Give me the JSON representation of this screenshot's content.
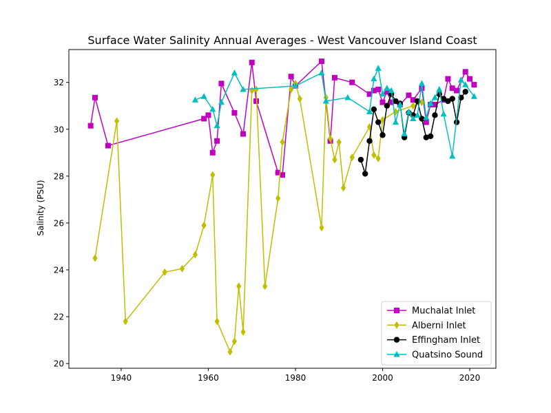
{
  "chart_data": {
    "type": "line",
    "title": "Surface Water Salinity Annual Averages - West Vancouver Island Coast",
    "xlabel": "",
    "ylabel": "Salinity (PSU)",
    "xlim": [
      1928,
      2026
    ],
    "ylim": [
      19.8,
      33.4
    ],
    "xticks": [
      1940,
      1960,
      1980,
      2000,
      2020
    ],
    "yticks": [
      20,
      22,
      24,
      26,
      28,
      30,
      32
    ],
    "grid": false,
    "legend_position": "lower right",
    "series": [
      {
        "name": "Muchalat Inlet",
        "color": "#bf00bf",
        "marker": "square",
        "points": [
          [
            1933,
            30.15
          ],
          [
            1934,
            31.35
          ],
          [
            1937,
            29.3
          ],
          [
            1959,
            30.45
          ],
          [
            1960,
            30.6
          ],
          [
            1961,
            29.0
          ],
          [
            1962,
            29.5
          ],
          [
            1963,
            31.95
          ],
          [
            1966,
            30.7
          ],
          [
            1968,
            29.8
          ],
          [
            1970,
            32.85
          ],
          [
            1971,
            31.2
          ],
          [
            1976,
            28.15
          ],
          [
            1977,
            28.05
          ],
          [
            1979,
            32.25
          ],
          [
            1980,
            31.85
          ],
          [
            1986,
            32.9
          ],
          [
            1988,
            29.5
          ],
          [
            1989,
            32.2
          ],
          [
            1993,
            32.0
          ],
          [
            1997,
            31.5
          ],
          [
            1998,
            31.65
          ],
          [
            1999,
            31.7
          ],
          [
            2000,
            31.15
          ],
          [
            2001,
            31.6
          ],
          [
            2002,
            31.15
          ],
          [
            2004,
            31.05
          ],
          [
            2006,
            31.45
          ],
          [
            2007,
            31.25
          ],
          [
            2009,
            31.75
          ],
          [
            2010,
            30.3
          ],
          [
            2011,
            31.05
          ],
          [
            2012,
            31.05
          ],
          [
            2014,
            31.25
          ],
          [
            2015,
            32.15
          ],
          [
            2016,
            31.75
          ],
          [
            2017,
            31.65
          ],
          [
            2019,
            32.45
          ],
          [
            2020,
            32.15
          ],
          [
            2021,
            31.9
          ]
        ]
      },
      {
        "name": "Alberni Inlet",
        "color": "#bfbf00",
        "marker": "thin_diamond",
        "points": [
          [
            1934,
            24.5
          ],
          [
            1939,
            30.35
          ],
          [
            1941,
            21.8
          ],
          [
            1950,
            23.9
          ],
          [
            1954,
            24.05
          ],
          [
            1957,
            24.65
          ],
          [
            1959,
            25.9
          ],
          [
            1961,
            28.05
          ],
          [
            1962,
            21.8
          ],
          [
            1965,
            20.5
          ],
          [
            1966,
            20.95
          ],
          [
            1967,
            23.3
          ],
          [
            1968,
            21.35
          ],
          [
            1970,
            31.65
          ],
          [
            1971,
            31.7
          ],
          [
            1973,
            23.3
          ],
          [
            1976,
            27.05
          ],
          [
            1977,
            29.45
          ],
          [
            1979,
            31.7
          ],
          [
            1980,
            31.95
          ],
          [
            1981,
            31.3
          ],
          [
            1986,
            25.8
          ],
          [
            1987,
            31.35
          ],
          [
            1988,
            29.6
          ],
          [
            1989,
            28.7
          ],
          [
            1990,
            29.45
          ],
          [
            1991,
            27.5
          ],
          [
            1993,
            28.8
          ],
          [
            1997,
            30.1
          ],
          [
            1998,
            28.9
          ],
          [
            1999,
            28.75
          ],
          [
            2000,
            30.4
          ],
          [
            2003,
            30.75
          ],
          [
            2007,
            31.0
          ],
          [
            2009,
            31.15
          ]
        ]
      },
      {
        "name": "Effingham Inlet",
        "color": "#000000",
        "marker": "circle",
        "points": [
          [
            1995,
            28.7
          ],
          [
            1996,
            28.1
          ],
          [
            1997,
            29.5
          ],
          [
            1998,
            30.85
          ],
          [
            1999,
            30.3
          ],
          [
            2000,
            29.75
          ],
          [
            2001,
            31.0
          ],
          [
            2002,
            31.5
          ],
          [
            2003,
            31.2
          ],
          [
            2004,
            31.1
          ],
          [
            2005,
            29.65
          ],
          [
            2006,
            30.7
          ],
          [
            2007,
            30.6
          ],
          [
            2008,
            31.2
          ],
          [
            2009,
            30.45
          ],
          [
            2010,
            29.65
          ],
          [
            2011,
            29.7
          ],
          [
            2012,
            30.6
          ],
          [
            2013,
            31.5
          ],
          [
            2014,
            31.3
          ],
          [
            2015,
            31.2
          ],
          [
            2016,
            31.3
          ],
          [
            2017,
            30.3
          ],
          [
            2018,
            31.35
          ],
          [
            2019,
            31.6
          ]
        ]
      },
      {
        "name": "Quatsino Sound",
        "color": "#00bfbf",
        "marker": "triangle",
        "points": [
          [
            1957,
            31.25
          ],
          [
            1959,
            31.4
          ],
          [
            1961,
            30.85
          ],
          [
            1962,
            30.15
          ],
          [
            1963,
            31.15
          ],
          [
            1966,
            32.4
          ],
          [
            1968,
            31.7
          ],
          [
            1980,
            31.85
          ],
          [
            1986,
            32.4
          ],
          [
            1987,
            31.2
          ],
          [
            1992,
            31.35
          ],
          [
            1997,
            30.75
          ],
          [
            1998,
            32.15
          ],
          [
            1999,
            32.6
          ],
          [
            2000,
            31.5
          ],
          [
            2001,
            31.75
          ],
          [
            2002,
            31.65
          ],
          [
            2003,
            30.3
          ],
          [
            2004,
            31.05
          ],
          [
            2005,
            29.8
          ],
          [
            2006,
            30.75
          ],
          [
            2007,
            30.45
          ],
          [
            2008,
            30.6
          ],
          [
            2009,
            31.95
          ],
          [
            2010,
            30.5
          ],
          [
            2011,
            31.1
          ],
          [
            2012,
            31.35
          ],
          [
            2013,
            31.7
          ],
          [
            2014,
            30.65
          ],
          [
            2016,
            28.85
          ],
          [
            2018,
            32.1
          ],
          [
            2019,
            31.9
          ],
          [
            2021,
            31.4
          ]
        ]
      }
    ]
  }
}
